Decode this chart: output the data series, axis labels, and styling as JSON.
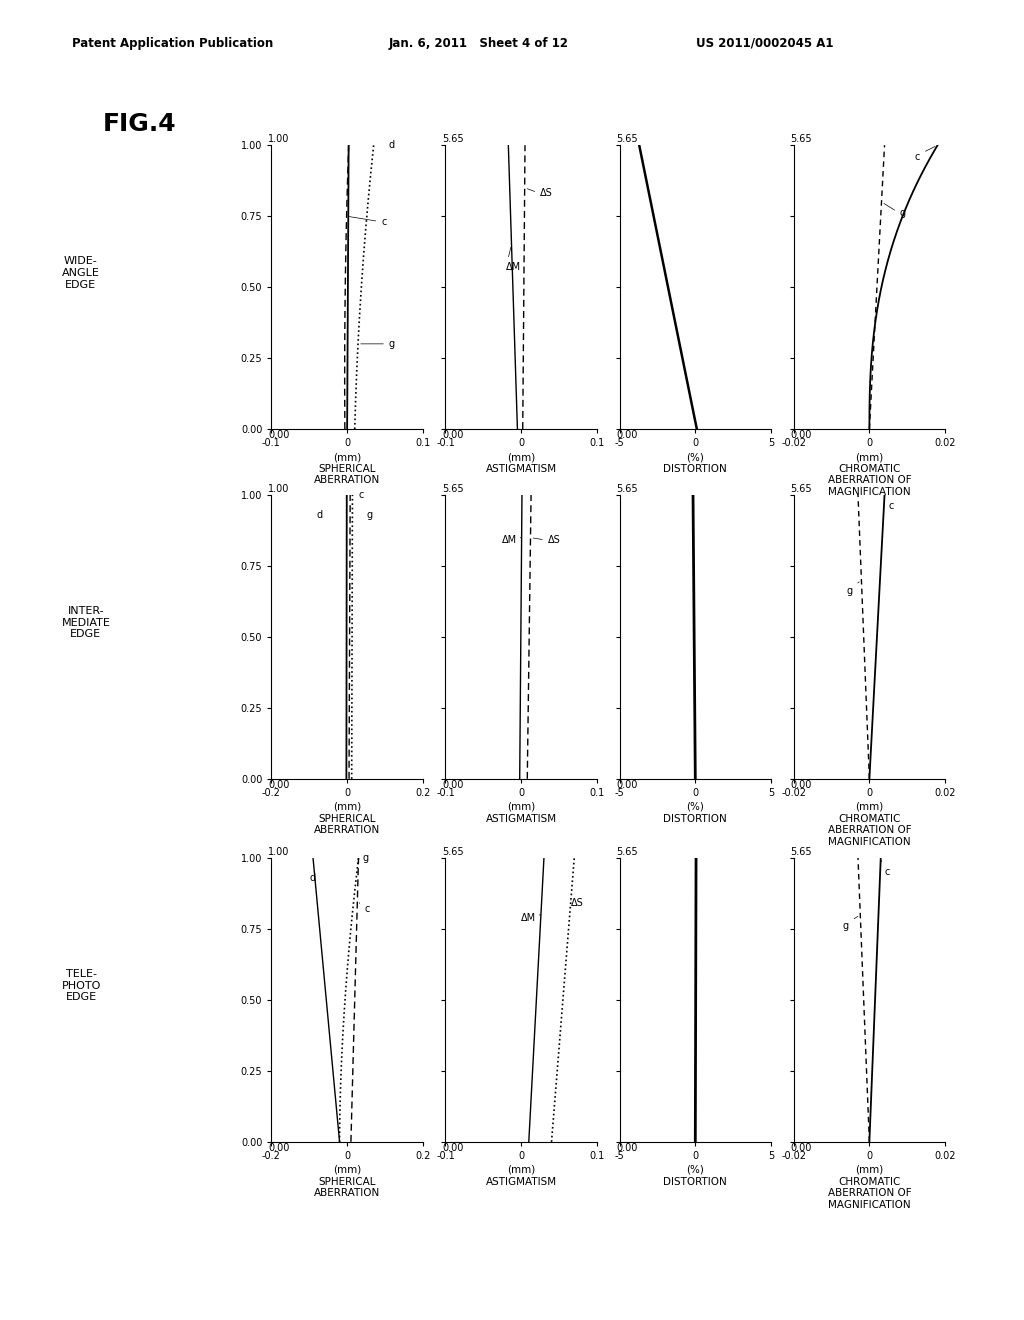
{
  "header_left": "Patent Application Publication",
  "header_center": "Jan. 6, 2011   Sheet 4 of 12",
  "header_right": "US 2011/0002045 A1",
  "fig_label": "FIG.4",
  "row_labels": [
    "WIDE-\nANGLE\nEDGE",
    "INTER-\nMEDIATE\nEDGE",
    "TELE-\nPHOTO\nEDGE"
  ],
  "background_color": "#ffffff"
}
